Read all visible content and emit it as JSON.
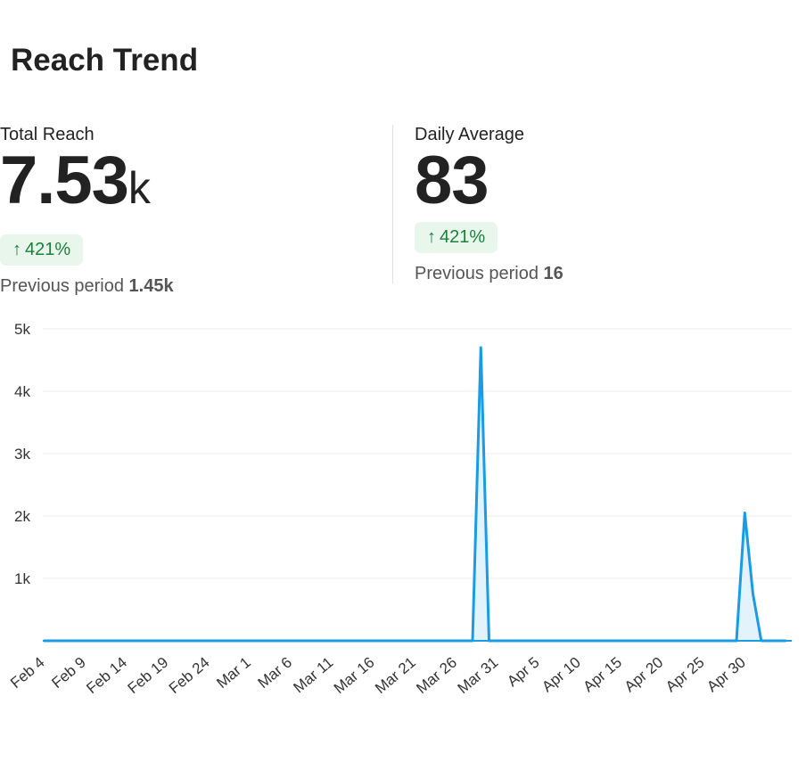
{
  "title": "Reach Trend",
  "stats": {
    "total": {
      "label": "Total Reach",
      "value": "7.53",
      "unit": "k",
      "change": "421%",
      "prev_label": "Previous period",
      "prev_value": "1.45k"
    },
    "daily": {
      "label": "Daily Average",
      "value": "83",
      "change": "421%",
      "prev_label": "Previous period",
      "prev_value": "16"
    }
  },
  "colors": {
    "line": "#1a9be6",
    "fill": "#e3f3fc",
    "badge_bg": "#e8f6ec",
    "badge_text": "#1e7f3a"
  },
  "chart_data": {
    "type": "area",
    "title": "",
    "xlabel": "",
    "ylabel": "",
    "ylim": [
      0,
      5000
    ],
    "yticks": [
      1000,
      2000,
      3000,
      4000,
      5000
    ],
    "ytick_labels": [
      "1k",
      "2k",
      "3k",
      "4k",
      "5k"
    ],
    "x_start": "Feb 4",
    "num_days": 91,
    "xtick_labels": [
      "Feb 4",
      "Feb 9",
      "Feb 14",
      "Feb 19",
      "Feb 24",
      "Mar 1",
      "Mar 6",
      "Mar 11",
      "Mar 16",
      "Mar 21",
      "Mar 26",
      "Mar 31",
      "Apr 5",
      "Apr 10",
      "Apr 15",
      "Apr 20",
      "Apr 25",
      "Apr 30"
    ],
    "xtick_every_days": 5,
    "series": [
      {
        "name": "Reach",
        "points": [
          {
            "day": 0,
            "value": 0
          },
          {
            "day": 52,
            "value": 0
          },
          {
            "day": 53,
            "value": 4700
          },
          {
            "day": 54,
            "value": 0
          },
          {
            "day": 84,
            "value": 0
          },
          {
            "day": 85,
            "value": 2050
          },
          {
            "day": 86,
            "value": 750
          },
          {
            "day": 87,
            "value": 0
          },
          {
            "day": 90,
            "value": 0
          }
        ]
      }
    ]
  }
}
